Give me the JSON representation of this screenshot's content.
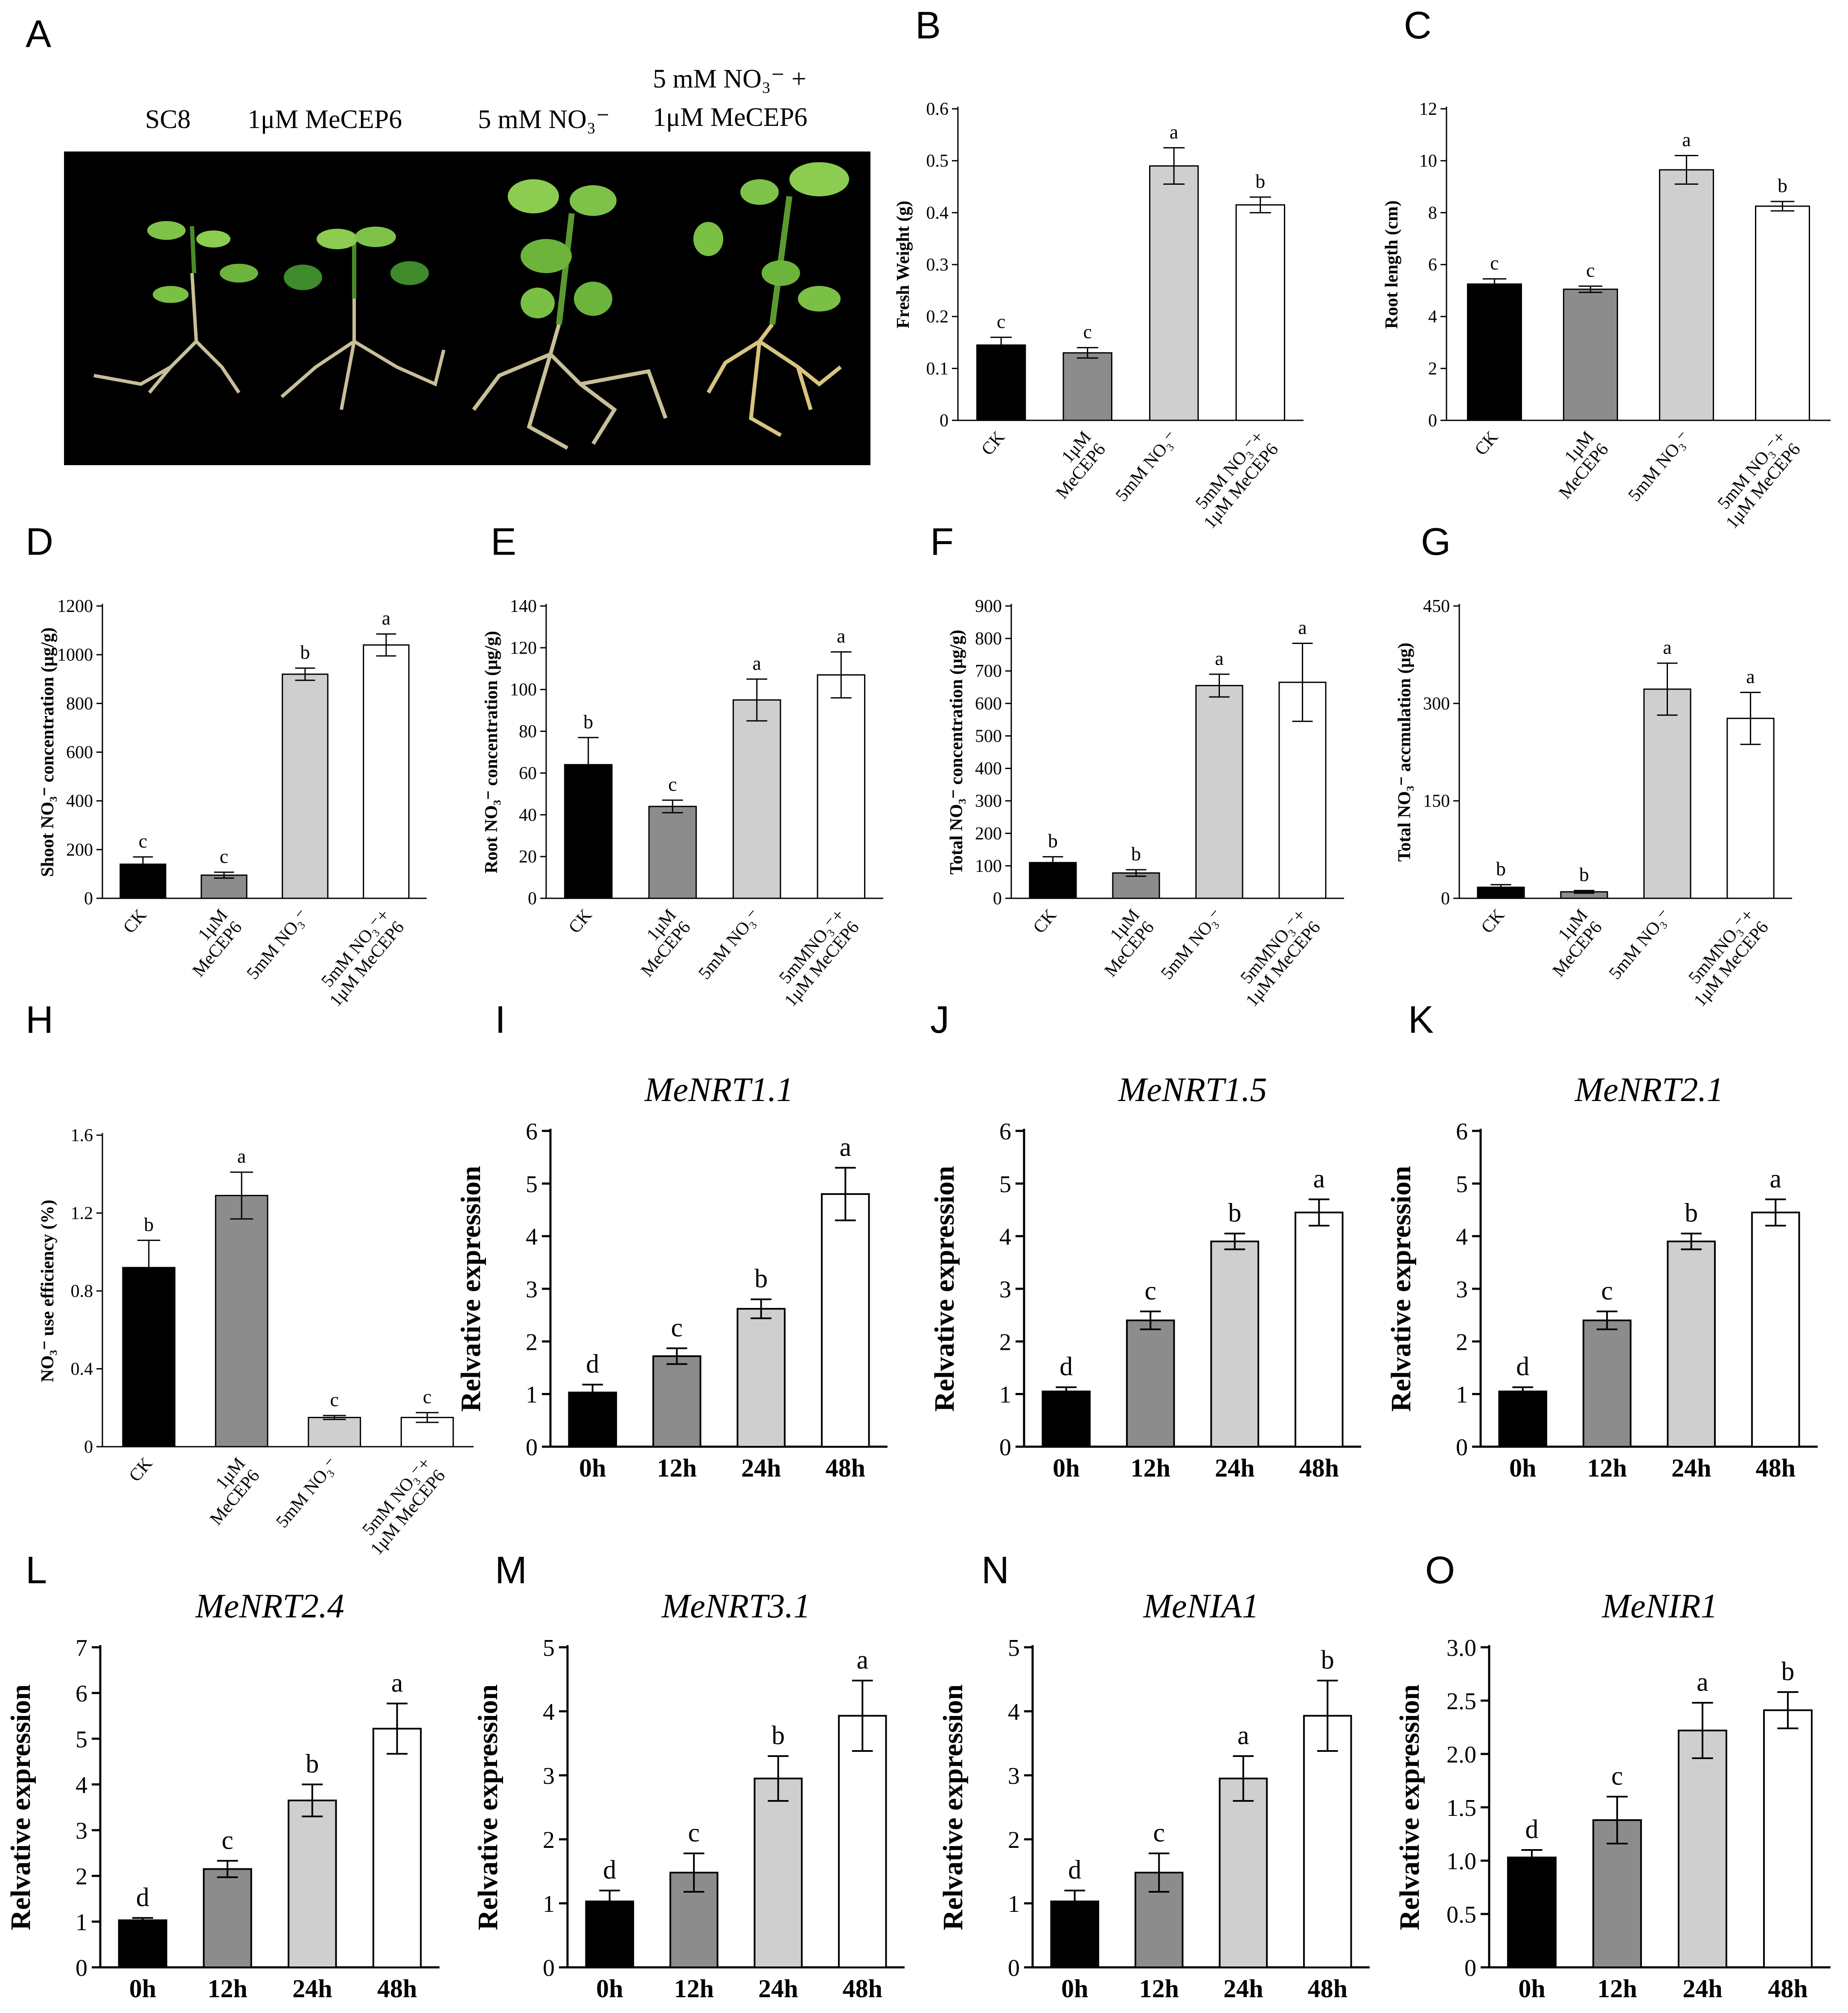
{
  "figure": {
    "photo": {
      "label": "A",
      "treatments": [
        "SC8",
        "1μM MeCEP6",
        "5 mM NO₃⁻",
        "5 mM NO₃⁻ +",
        "1μM MeCEP6"
      ]
    }
  },
  "colors": {
    "bar_ck": "#000000",
    "bar_mecep6": "#8c8c8c",
    "bar_no3": "#cfcfcf",
    "bar_combo": "#ffffff"
  },
  "chart_data": [
    {
      "panel": "B",
      "type": "bar",
      "title": "",
      "categories": [
        "CK",
        "1μM|MeCEP6",
        "5mM NO₃⁻",
        "5mM NO₃⁻+|1μM MeCEP6"
      ],
      "values": [
        0.145,
        0.13,
        0.49,
        0.415
      ],
      "errors": [
        0.015,
        0.01,
        0.035,
        0.015
      ],
      "letters": [
        "c",
        "c",
        "a",
        "b"
      ],
      "ylabel": "Fresh Weight (g)",
      "xlabel": "",
      "ylim": [
        0,
        0.6
      ],
      "yticks": [
        "0",
        "0.1",
        "0.2",
        "0.3",
        "0.4",
        "0.5",
        "0.6"
      ]
    },
    {
      "panel": "C",
      "type": "bar",
      "title": "",
      "categories": [
        "CK",
        "1μM|MeCEP6",
        "5mM NO₃⁻",
        "5mM NO₃⁻+|1μM MeCEP6"
      ],
      "values": [
        5.25,
        5.05,
        9.65,
        8.25
      ],
      "errors": [
        0.2,
        0.12,
        0.55,
        0.18
      ],
      "letters": [
        "c",
        "c",
        "a",
        "b"
      ],
      "ylabel": "Root length (cm)",
      "xlabel": "",
      "ylim": [
        0,
        12
      ],
      "yticks": [
        "0",
        "2",
        "4",
        "6",
        "8",
        "10",
        "12"
      ]
    },
    {
      "panel": "D",
      "type": "bar",
      "title": "",
      "categories": [
        "CK",
        "1μM|MeCEP6",
        "5mM NO₃⁻",
        "5mM NO₃⁻+|1μM MeCEP6"
      ],
      "values": [
        140,
        95,
        920,
        1040
      ],
      "errors": [
        30,
        12,
        25,
        45
      ],
      "letters": [
        "c",
        "c",
        "b",
        "a"
      ],
      "ylabel": "Shoot NO₃⁻ concentration (μg/g)",
      "xlabel": "",
      "ylim": [
        0,
        1200
      ],
      "yticks": [
        "0",
        "200",
        "400",
        "600",
        "800",
        "1000",
        "1200"
      ]
    },
    {
      "panel": "E",
      "type": "bar",
      "title": "",
      "categories": [
        "CK",
        "1μM|MeCEP6",
        "5mM NO₃⁻",
        "5mMNO₃⁻+|1μM MeCEP6"
      ],
      "values": [
        64,
        44,
        95,
        107
      ],
      "errors": [
        13,
        3,
        10,
        11
      ],
      "letters": [
        "b",
        "c",
        "a",
        "a"
      ],
      "ylabel": "Root NO₃⁻ concentration (μg/g)",
      "xlabel": "",
      "ylim": [
        0,
        140
      ],
      "yticks": [
        "0",
        "20",
        "40",
        "60",
        "80",
        "100",
        "120",
        "140"
      ]
    },
    {
      "panel": "F",
      "type": "bar",
      "title": "",
      "categories": [
        "CK",
        "1μM|MeCEP6",
        "5mM NO₃⁻",
        "5mMNO₃⁻+|1μM MeCEP6"
      ],
      "values": [
        110,
        78,
        655,
        665
      ],
      "errors": [
        18,
        10,
        35,
        120
      ],
      "letters": [
        "b",
        "b",
        "a",
        "a"
      ],
      "ylabel": "Total NO₃⁻ concentration (μg/g)",
      "xlabel": "",
      "ylim": [
        0,
        900
      ],
      "yticks": [
        "0",
        "100",
        "200",
        "300",
        "400",
        "500",
        "600",
        "700",
        "800",
        "900"
      ]
    },
    {
      "panel": "G",
      "type": "bar",
      "title": "",
      "categories": [
        "CK",
        "1μM|MeCEP6",
        "5mM NO₃⁻",
        "5mMNO₃⁻+|1μM MeCEP6"
      ],
      "values": [
        17,
        10,
        322,
        277
      ],
      "errors": [
        4,
        2,
        40,
        40
      ],
      "letters": [
        "b",
        "b",
        "a",
        "a"
      ],
      "ylabel": "Total NO₃⁻ accmulation (μg)",
      "xlabel": "",
      "ylim": [
        0,
        450
      ],
      "yticks": [
        "0",
        "150",
        "300",
        "450"
      ]
    },
    {
      "panel": "H",
      "type": "bar",
      "title": "",
      "categories": [
        "CK",
        "1μM|MeCEP6",
        "5mM NO₃⁻",
        "5mM NO₃⁻+|1μM MeCEP6"
      ],
      "values": [
        0.92,
        1.29,
        0.15,
        0.15
      ],
      "errors": [
        0.14,
        0.12,
        0.01,
        0.025
      ],
      "letters": [
        "b",
        "a",
        "c",
        "c"
      ],
      "ylabel": "NO₃⁻ use efficiency (%)",
      "xlabel": "",
      "ylim": [
        0,
        1.6
      ],
      "yticks": [
        "0",
        "0.4",
        "0.8",
        "1.2",
        "1.6"
      ]
    },
    {
      "panel": "I",
      "type": "bar",
      "title": "MeNRT1.1",
      "categories": [
        "0h",
        "12h",
        "24h",
        "48h"
      ],
      "values": [
        1.03,
        1.72,
        2.62,
        4.8
      ],
      "errors": [
        0.15,
        0.15,
        0.18,
        0.5
      ],
      "letters": [
        "d",
        "c",
        "b",
        "a"
      ],
      "ylabel": "Relvative expression",
      "xlabel": "",
      "ylim": [
        0,
        6
      ],
      "yticks": [
        "0",
        "1",
        "2",
        "3",
        "4",
        "5",
        "6"
      ]
    },
    {
      "panel": "J",
      "type": "bar",
      "title": "MeNRT1.5",
      "categories": [
        "0h",
        "12h",
        "24h",
        "48h"
      ],
      "values": [
        1.05,
        2.4,
        3.9,
        4.45
      ],
      "errors": [
        0.08,
        0.17,
        0.15,
        0.25
      ],
      "letters": [
        "d",
        "c",
        "b",
        "a"
      ],
      "ylabel": "Relvative expression",
      "xlabel": "",
      "ylim": [
        0,
        6
      ],
      "yticks": [
        "0",
        "1",
        "2",
        "3",
        "4",
        "5",
        "6"
      ]
    },
    {
      "panel": "K",
      "type": "bar",
      "title": "MeNRT2.1",
      "categories": [
        "0h",
        "12h",
        "24h",
        "48h"
      ],
      "values": [
        1.05,
        2.4,
        3.9,
        4.45
      ],
      "errors": [
        0.08,
        0.17,
        0.15,
        0.25
      ],
      "letters": [
        "d",
        "c",
        "b",
        "a"
      ],
      "ylabel": "Relvative expression",
      "xlabel": "",
      "ylim": [
        0,
        6
      ],
      "yticks": [
        "0",
        "1",
        "2",
        "3",
        "4",
        "5",
        "6"
      ]
    },
    {
      "panel": "L",
      "type": "bar",
      "title": "MeNRT2.4",
      "categories": [
        "0h",
        "12h",
        "24h",
        "48h"
      ],
      "values": [
        1.03,
        2.15,
        3.65,
        5.22
      ],
      "errors": [
        0.05,
        0.18,
        0.35,
        0.55
      ],
      "letters": [
        "d",
        "c",
        "b",
        "a"
      ],
      "ylabel": "Relvative expression",
      "xlabel": "",
      "ylim": [
        0,
        7
      ],
      "yticks": [
        "0",
        "1",
        "2",
        "3",
        "4",
        "5",
        "6",
        "7"
      ]
    },
    {
      "panel": "M",
      "type": "bar",
      "title": "MeNRT3.1",
      "categories": [
        "0h",
        "12h",
        "24h",
        "48h"
      ],
      "values": [
        1.03,
        1.48,
        2.95,
        3.93
      ],
      "errors": [
        0.17,
        0.3,
        0.35,
        0.55
      ],
      "letters": [
        "d",
        "c",
        "b",
        "a"
      ],
      "ylabel": "Relvative expression",
      "xlabel": "",
      "ylim": [
        0,
        5
      ],
      "yticks": [
        "0",
        "1",
        "2",
        "3",
        "4",
        "5"
      ]
    },
    {
      "panel": "N",
      "type": "bar",
      "title": "MeNIA1",
      "categories": [
        "0h",
        "12h",
        "24h",
        "48h"
      ],
      "values": [
        1.03,
        1.48,
        2.95,
        3.93
      ],
      "errors": [
        0.17,
        0.3,
        0.35,
        0.55
      ],
      "letters": [
        "d",
        "c",
        "a",
        "b"
      ],
      "ylabel": "Relvative expression",
      "xlabel": "",
      "ylim": [
        0,
        5
      ],
      "yticks": [
        "0",
        "1",
        "2",
        "3",
        "4",
        "5"
      ]
    },
    {
      "panel": "O",
      "type": "bar",
      "title": "MeNIR1",
      "categories": [
        "0h",
        "12h",
        "24h",
        "48h"
      ],
      "values": [
        1.03,
        1.38,
        2.22,
        2.41
      ],
      "errors": [
        0.07,
        0.22,
        0.26,
        0.17
      ],
      "letters": [
        "d",
        "c",
        "a",
        "b"
      ],
      "ylabel": "Relvative expression",
      "xlabel": "",
      "ylim": [
        0,
        3
      ],
      "yticks": [
        "0",
        "0.5",
        "1.0",
        "1.5",
        "2.0",
        "2.5",
        "3.0"
      ]
    }
  ]
}
